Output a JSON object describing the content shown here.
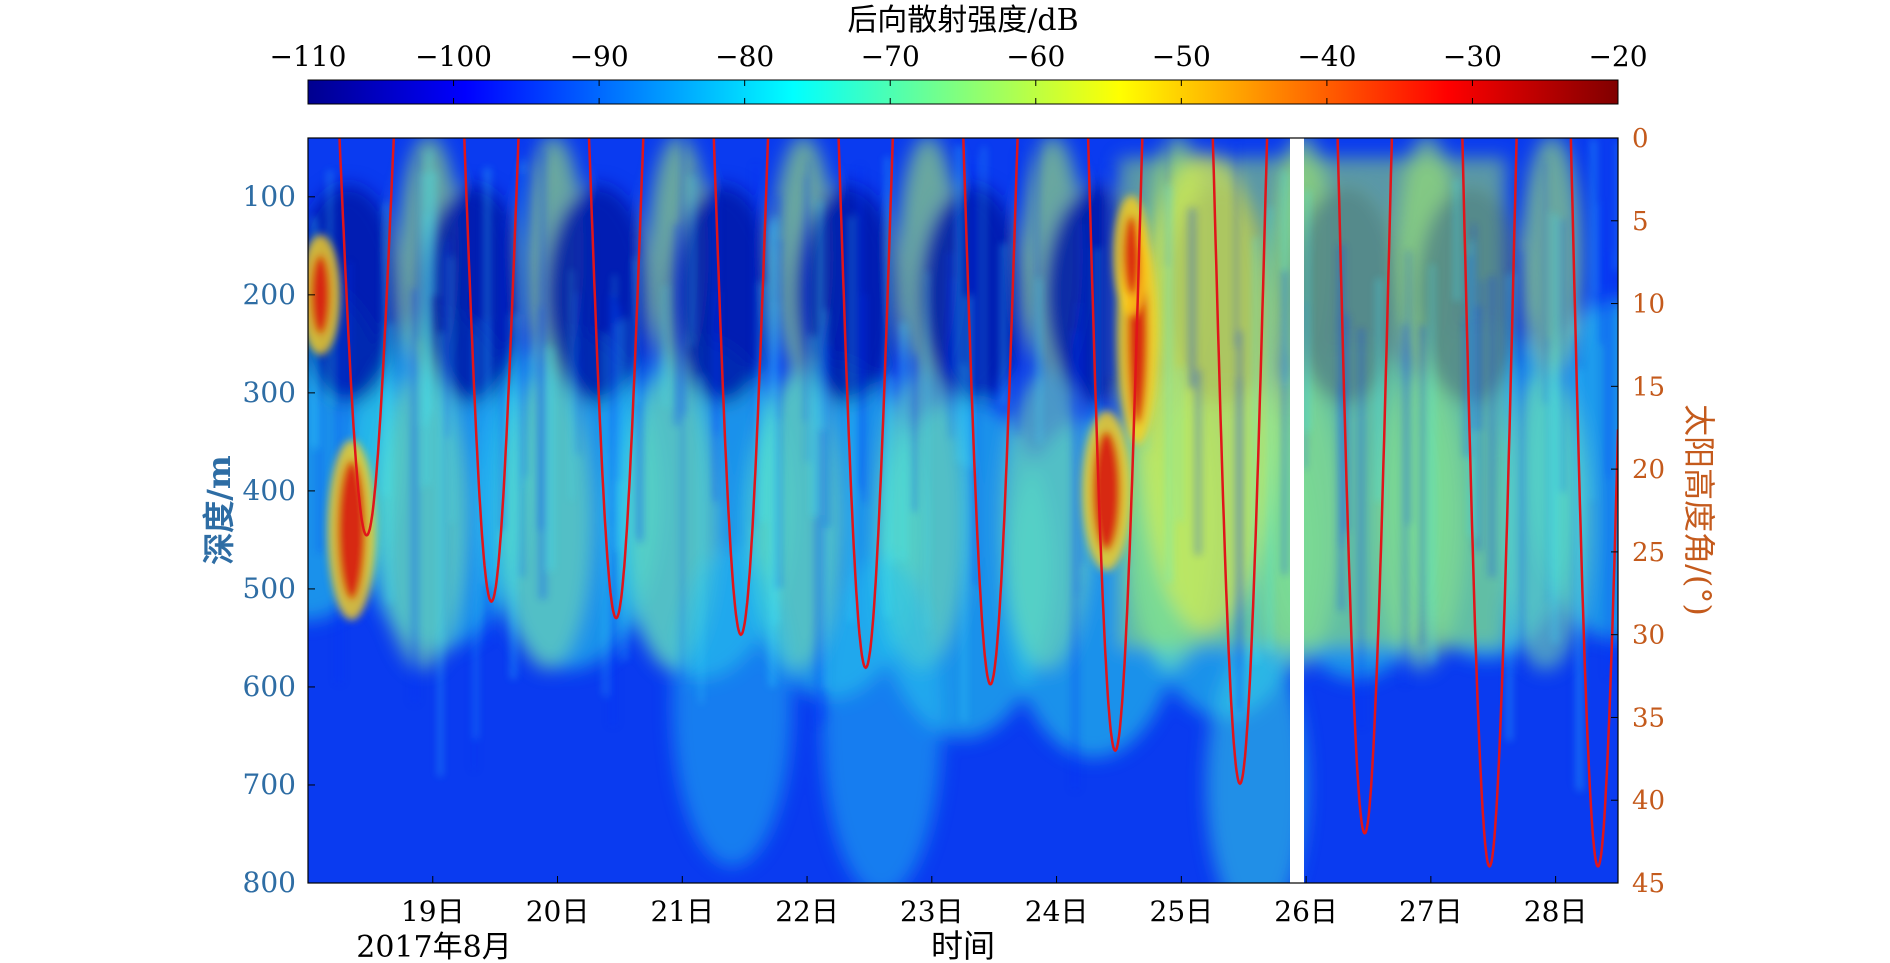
{
  "chart_data": {
    "type": "heatmap",
    "colorbar": {
      "title": "后向散射强度/dB",
      "ticks": [
        "−110",
        "−100",
        "−90",
        "−80",
        "−70",
        "−60",
        "−50",
        "−40",
        "−30",
        "−20"
      ],
      "range": [
        -110,
        -20
      ],
      "colormap": "jet"
    },
    "xlabel": "时间",
    "month_label": "2017年8月",
    "x_ticks": [
      "19日",
      "20日",
      "21日",
      "22日",
      "23日",
      "24日",
      "25日",
      "26日",
      "27日",
      "28日"
    ],
    "xlim_days": [
      18.0,
      28.5
    ],
    "ylabel": "深度/m",
    "y_ticks": [
      "100",
      "200",
      "300",
      "400",
      "500",
      "600",
      "700",
      "800"
    ],
    "ylim": [
      40,
      800
    ],
    "y2label": "太阳高度角/(°)",
    "y2_ticks": [
      "0",
      "5",
      "10",
      "15",
      "20",
      "25",
      "30",
      "35",
      "40",
      "45"
    ],
    "y2lim": [
      0,
      45
    ],
    "solar_elevation_series": {
      "color": "#e0151a",
      "daily_noon_peak_day": [
        18.47,
        19.47,
        20.47,
        21.47,
        22.47,
        23.47,
        24.47,
        25.47,
        26.47,
        27.47
      ],
      "daily_noon_peak_deg": [
        24,
        28,
        29,
        30,
        32,
        33,
        37,
        39,
        42,
        44
      ]
    },
    "backscatter_layers_description": "dark blue (−105 dB) near-surface daytime zones; cyan/green scattering layer 250–550 m; yellow/red high-backscatter patches near 18.3 day and 24.4 day",
    "migrating_layer_mid_depth_m": [
      420,
      450,
      470,
      480,
      500,
      540,
      560,
      520,
      480,
      460,
      440
    ]
  }
}
